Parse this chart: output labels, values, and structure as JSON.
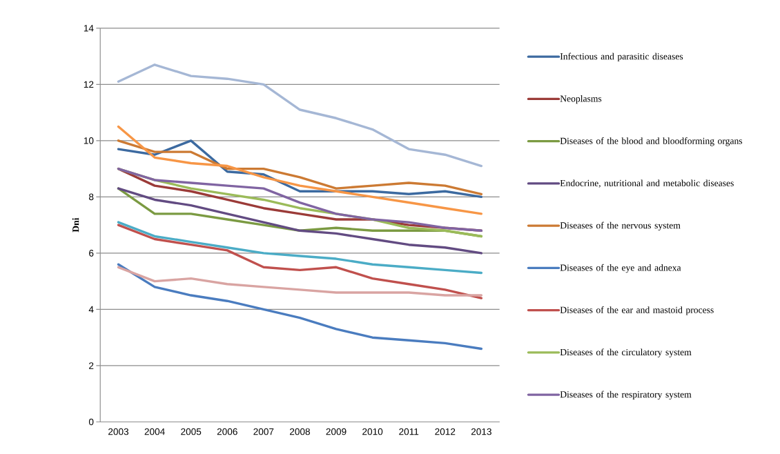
{
  "chart_data": {
    "type": "line",
    "ylabel": "Dni",
    "categories": [
      "2003",
      "2004",
      "2005",
      "2006",
      "2007",
      "2008",
      "2009",
      "2010",
      "2011",
      "2012",
      "2013"
    ],
    "ylim": [
      0,
      14
    ],
    "yticks": [
      0,
      2,
      4,
      6,
      8,
      10,
      12,
      14
    ],
    "grid": "y",
    "legend": "right",
    "series": [
      {
        "name": "Infectious and parasitic diseases",
        "color": "#3c6aa0",
        "values": [
          9.7,
          9.5,
          10.0,
          8.9,
          8.8,
          8.2,
          8.2,
          8.2,
          8.1,
          8.2,
          8.0
        ]
      },
      {
        "name": "Neoplasms",
        "color": "#9b3b38",
        "values": [
          9.0,
          8.4,
          8.2,
          7.9,
          7.6,
          7.4,
          7.2,
          7.2,
          7.0,
          6.9,
          6.8
        ]
      },
      {
        "name": "Diseases of the blood and bloodforming organs",
        "color": "#7b9a42",
        "values": [
          8.3,
          7.4,
          7.4,
          7.2,
          7.0,
          6.8,
          6.9,
          6.8,
          6.8,
          6.8,
          6.6
        ]
      },
      {
        "name": "Endocrine, nutritional and metabolic diseases",
        "color": "#624b82",
        "values": [
          8.3,
          7.9,
          7.7,
          7.4,
          7.1,
          6.8,
          6.7,
          6.5,
          6.3,
          6.2,
          6.0
        ]
      },
      {
        "name": "Diseases of the nervous system",
        "color": "#cc7a33",
        "values": [
          10.0,
          9.6,
          9.6,
          9.0,
          9.0,
          8.7,
          8.3,
          8.4,
          8.5,
          8.4,
          8.1
        ]
      },
      {
        "name": "Diseases of the eye and adnexa",
        "color": "#4a7cbf",
        "values": [
          5.6,
          4.8,
          4.5,
          4.3,
          4.0,
          3.7,
          3.3,
          3.0,
          2.9,
          2.8,
          2.6
        ]
      },
      {
        "name": "Diseases of the ear and mastoid process",
        "color": "#c0504d",
        "values": [
          7.0,
          6.5,
          6.3,
          6.1,
          5.5,
          5.4,
          5.5,
          5.1,
          4.9,
          4.7,
          4.4
        ]
      },
      {
        "name": "Diseases of the circulatory system",
        "color": "#9bbb59",
        "values": [
          9.0,
          8.6,
          8.3,
          8.1,
          7.9,
          7.6,
          7.4,
          7.2,
          6.9,
          6.8,
          6.6
        ]
      },
      {
        "name": "Diseases of the respiratory system",
        "color": "#8064a2",
        "values": [
          9.0,
          8.6,
          8.5,
          8.4,
          8.3,
          7.8,
          7.4,
          7.2,
          7.1,
          6.9,
          6.8
        ]
      },
      {
        "color": "#a5b7d5",
        "values": [
          12.1,
          12.7,
          12.3,
          12.2,
          12.0,
          11.1,
          10.8,
          10.4,
          9.7,
          9.5,
          9.1
        ]
      },
      {
        "color": "#f79646",
        "values": [
          10.5,
          9.4,
          9.2,
          9.1,
          8.7,
          8.4,
          8.2,
          8.0,
          7.8,
          7.6,
          7.4
        ]
      },
      {
        "color": "#4bacc6",
        "values": [
          7.1,
          6.6,
          6.4,
          6.2,
          6.0,
          5.9,
          5.8,
          5.6,
          5.5,
          5.4,
          5.3
        ]
      },
      {
        "color": "#d9a4a2",
        "values": [
          5.5,
          5.0,
          5.1,
          4.9,
          4.8,
          4.7,
          4.6,
          4.6,
          4.6,
          4.5,
          4.5
        ]
      }
    ]
  }
}
